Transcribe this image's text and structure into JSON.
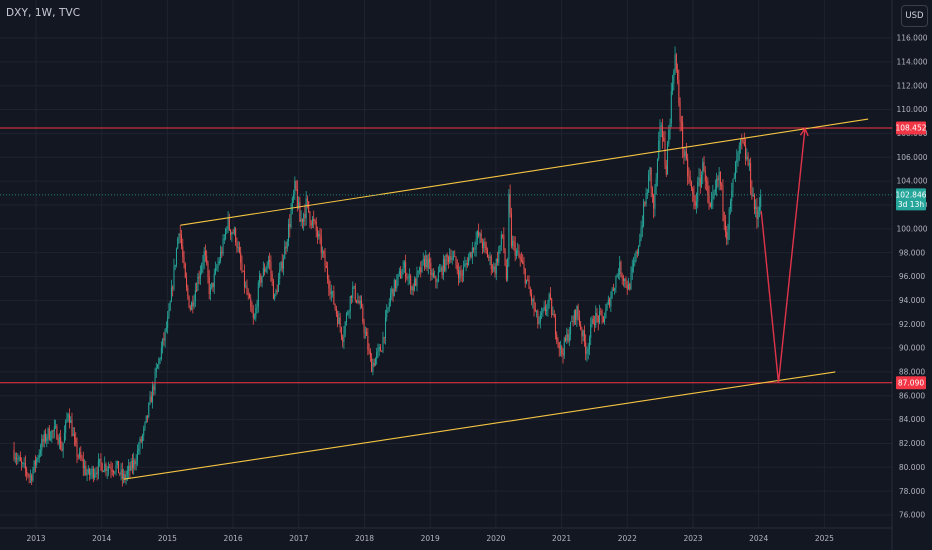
{
  "header": {
    "symbol_title": "DXY, 1W, TVC"
  },
  "currency_button": {
    "label": "USD"
  },
  "colors": {
    "background": "#131722",
    "grid": "#1f2330",
    "candle_up": "#26a69a",
    "candle_down": "#ef5350",
    "channel_line": "#f5c542",
    "level_line": "#f23645",
    "arrow": "#e0344a",
    "price_line": "#26a69a",
    "axis_text": "#b2b5be"
  },
  "chart_data": {
    "type": "candlestick",
    "symbol": "DXY",
    "interval": "1W",
    "source": "TVC",
    "y_axis": {
      "ticks": [
        76,
        78,
        80,
        82,
        84,
        86,
        88,
        90,
        92,
        94,
        96,
        98,
        100,
        102,
        104,
        106,
        108,
        110,
        112,
        114,
        116
      ],
      "tick_labels": [
        "76.000",
        "78.000",
        "80.000",
        "82.000",
        "84.000",
        "86.000",
        "88.000",
        "90.000",
        "92.000",
        "94.000",
        "96.000",
        "98.000",
        "100.000",
        "102.000",
        "104.000",
        "106.000",
        "108.000",
        "110.000",
        "112.000",
        "114.000",
        "116.000"
      ],
      "position": "right"
    },
    "x_axis": {
      "ticks": [
        "2013",
        "2014",
        "2015",
        "2016",
        "2017",
        "2018",
        "2019",
        "2020",
        "2021",
        "2022",
        "2023",
        "2024",
        "2025"
      ]
    },
    "grid": true,
    "price_path": [
      [
        "2012-09-01",
        81.5
      ],
      [
        "2012-10-15",
        80.2
      ],
      [
        "2012-12-10",
        79.2
      ],
      [
        "2013-02-05",
        81.8
      ],
      [
        "2013-03-10",
        82.8
      ],
      [
        "2013-05-01",
        83.0
      ],
      [
        "2013-06-01",
        81.5
      ],
      [
        "2013-07-05",
        84.8
      ],
      [
        "2013-08-15",
        81.5
      ],
      [
        "2013-10-25",
        79.3
      ],
      [
        "2013-12-31",
        80.2
      ],
      [
        "2014-04-01",
        80.0
      ],
      [
        "2014-05-05",
        79.0
      ],
      [
        "2014-07-01",
        80.2
      ],
      [
        "2014-09-01",
        83.0
      ],
      [
        "2014-11-15",
        88.5
      ],
      [
        "2015-01-15",
        92.5
      ],
      [
        "2015-03-13",
        100.3
      ],
      [
        "2015-04-20",
        95.0
      ],
      [
        "2015-05-15",
        93.3
      ],
      [
        "2015-06-20",
        95.5
      ],
      [
        "2015-08-01",
        98.0
      ],
      [
        "2015-09-01",
        94.5
      ],
      [
        "2015-11-20",
        99.0
      ],
      [
        "2015-12-02",
        100.5
      ],
      [
        "2016-01-20",
        99.5
      ],
      [
        "2016-03-01",
        96.0
      ],
      [
        "2016-05-03",
        92.0
      ],
      [
        "2016-06-01",
        95.5
      ],
      [
        "2016-07-25",
        97.5
      ],
      [
        "2016-08-25",
        94.0
      ],
      [
        "2016-10-25",
        98.5
      ],
      [
        "2016-12-20",
        103.5
      ],
      [
        "2017-01-15",
        100.5
      ],
      [
        "2017-02-20",
        102.0
      ],
      [
        "2017-05-01",
        99.0
      ],
      [
        "2017-07-01",
        95.0
      ],
      [
        "2017-09-08",
        91.0
      ],
      [
        "2017-11-01",
        95.0
      ],
      [
        "2017-12-15",
        93.5
      ],
      [
        "2018-02-15",
        88.5
      ],
      [
        "2018-04-10",
        90.0
      ],
      [
        "2018-06-01",
        94.5
      ],
      [
        "2018-08-15",
        96.8
      ],
      [
        "2018-10-01",
        95.0
      ],
      [
        "2018-12-15",
        97.5
      ],
      [
        "2019-01-31",
        95.5
      ],
      [
        "2019-05-01",
        98.0
      ],
      [
        "2019-06-25",
        96.0
      ],
      [
        "2019-10-01",
        99.5
      ],
      [
        "2019-12-31",
        96.5
      ],
      [
        "2020-02-15",
        99.5
      ],
      [
        "2020-03-10",
        95.0
      ],
      [
        "2020-03-20",
        103.0
      ],
      [
        "2020-04-01",
        99.0
      ],
      [
        "2020-06-01",
        97.0
      ],
      [
        "2020-09-01",
        92.0
      ],
      [
        "2020-11-01",
        94.0
      ],
      [
        "2021-01-06",
        89.5
      ],
      [
        "2021-03-31",
        93.2
      ],
      [
        "2021-05-25",
        89.7
      ],
      [
        "2021-07-01",
        92.5
      ],
      [
        "2021-09-01",
        92.5
      ],
      [
        "2021-11-24",
        96.8
      ],
      [
        "2022-01-15",
        95.0
      ],
      [
        "2022-03-01",
        98.0
      ],
      [
        "2022-05-13",
        104.8
      ],
      [
        "2022-06-01",
        101.5
      ],
      [
        "2022-07-14",
        109.0
      ],
      [
        "2022-08-10",
        105.0
      ],
      [
        "2022-09-28",
        114.8
      ],
      [
        "2022-11-15",
        106.5
      ],
      [
        "2023-01-15",
        102.0
      ],
      [
        "2023-03-08",
        105.5
      ],
      [
        "2023-04-10",
        101.0
      ],
      [
        "2023-06-01",
        104.5
      ],
      [
        "2023-07-14",
        99.6
      ],
      [
        "2023-08-25",
        104.5
      ],
      [
        "2023-10-03",
        107.2
      ],
      [
        "2023-11-10",
        105.5
      ],
      [
        "2023-12-27",
        100.7
      ],
      [
        "2024-01-15",
        102.8
      ]
    ],
    "last_price": {
      "value": 102.846,
      "label": "102.846",
      "countdown": "3d 13h"
    },
    "horizontal_levels": [
      {
        "value": 108.452,
        "label": "108.452"
      },
      {
        "value": 87.09,
        "label": "87.090"
      }
    ],
    "trend_lines": [
      {
        "name": "upper-channel",
        "from": [
          "2015-03-13",
          100.3
        ],
        "to": [
          "2025-09-01",
          109.2
        ]
      },
      {
        "name": "lower-channel",
        "from": [
          "2014-05-01",
          79.0
        ],
        "to": [
          "2025-03-01",
          88.0
        ]
      }
    ],
    "projection_arrow": {
      "path": [
        [
          "2024-01-15",
          101.5
        ],
        [
          "2024-04-20",
          87.09
        ],
        [
          "2024-09-15",
          108.4
        ]
      ]
    }
  }
}
